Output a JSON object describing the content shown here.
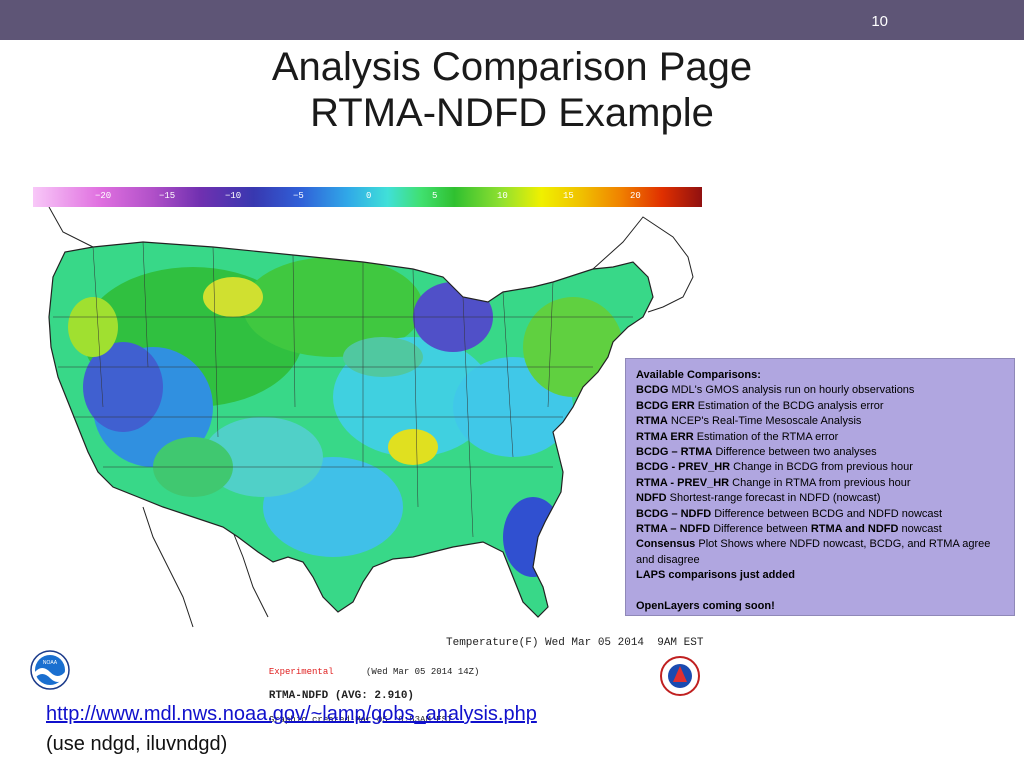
{
  "slide": {
    "number": "10",
    "title_line1": "Analysis Comparison Page",
    "title_line2": "RTMA-NDFD Example"
  },
  "colorbar": {
    "ticks": [
      "−20",
      "−15",
      "−10",
      "−5",
      "0",
      "5",
      "10",
      "15",
      "20"
    ]
  },
  "map": {
    "caption": "Temperature(F) Wed Mar 05 2014  9AM EST",
    "footer_experimental": "Experimental",
    "footer_date": "(Wed Mar 05 2014 14Z)",
    "footer_avg": "RTMA-NDFD (AVG: 2.910)",
    "footer_created": "Graphic created-Mar 05  9:53AM EST"
  },
  "logos": {
    "noaa": "NOAA",
    "nws": "NATIONAL WEATHER SERVICE"
  },
  "comparisons": {
    "heading": "Available Comparisons:",
    "items": [
      {
        "term": "BCDG",
        "desc": " MDL's GMOS analysis run on hourly observations"
      },
      {
        "term": "BCDG ERR",
        "desc": " Estimation of the BCDG analysis error"
      },
      {
        "term": "RTMA",
        "desc": " NCEP's Real-Time Mesoscale Analysis"
      },
      {
        "term": "RTMA ERR",
        "desc": " Estimation of the RTMA error"
      },
      {
        "term": "BCDG – RTMA",
        "desc": " Difference between two analyses"
      },
      {
        "term": "BCDG - PREV_HR",
        "desc": " Change in BCDG from previous hour"
      },
      {
        "term": "RTMA - PREV_HR",
        "desc": " Change in RTMA from previous hour"
      },
      {
        "term": "NDFD",
        "desc": " Shortest-range forecast in NDFD (nowcast)"
      },
      {
        "term": "BCDG – NDFD",
        "desc": " Difference between BCDG and NDFD nowcast"
      }
    ],
    "rtma_ndfd_term": "RTMA – NDFD",
    "rtma_ndfd_desc_a": " Difference between ",
    "rtma_ndfd_bold": "RTMA and NDFD",
    "rtma_ndfd_desc_b": " nowcast",
    "consensus_term": "Consensus",
    "consensus_desc": " Plot Shows where NDFD nowcast, BCDG, and RTMA agree and disagree",
    "laps_note": "LAPS comparisons just added",
    "openlayers_note": "OpenLayers coming soon!"
  },
  "link": {
    "url": "http://www.mdl.nws.noaa.gov/~lamp/gobs_analysis.php",
    "credentials": "(use ndgd, iluvndgd)"
  },
  "colors": {
    "topbar": "#5e5576",
    "box_background": "#b0a6e0",
    "link": "#1010cc"
  }
}
